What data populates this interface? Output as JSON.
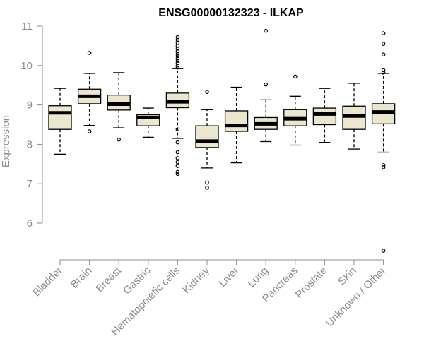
{
  "chart_data": {
    "type": "box",
    "title": "ENSG00000132323 - ILKAP",
    "xlabel": "",
    "ylabel": "Expression",
    "ylim": [
      5.2,
      11.05
    ],
    "yticks": [
      6,
      7,
      8,
      9,
      10,
      11
    ],
    "yticklabels": [
      "6",
      "7",
      "8",
      "9",
      "10",
      "11"
    ],
    "colors": {
      "box_fill": "#ede6cf",
      "box_stroke": "#000000",
      "axis": "#8c8c8c"
    },
    "categories": [
      "Bladder",
      "Brain",
      "Breast",
      "Gastric",
      "Hematopoietic cells",
      "Kidney",
      "Liver",
      "Lung",
      "Pancreas",
      "Prostate",
      "Skin",
      "Unknown / Other"
    ],
    "boxes": [
      {
        "category": "Bladder",
        "whisker_low": 7.75,
        "q1": 8.38,
        "median": 8.8,
        "q3": 8.98,
        "whisker_high": 9.42,
        "outliers": []
      },
      {
        "category": "Brain",
        "whisker_low": 8.48,
        "q1": 9.03,
        "median": 9.22,
        "q3": 9.4,
        "whisker_high": 9.8,
        "outliers": [
          10.32,
          8.33
        ]
      },
      {
        "category": "Breast",
        "whisker_low": 8.42,
        "q1": 8.87,
        "median": 9.02,
        "q3": 9.25,
        "whisker_high": 9.82,
        "outliers": [
          8.12
        ]
      },
      {
        "category": "Gastric",
        "whisker_low": 8.18,
        "q1": 8.47,
        "median": 8.68,
        "q3": 8.75,
        "whisker_high": 8.92,
        "outliers": []
      },
      {
        "category": "Hematopoietic cells",
        "whisker_low": 8.15,
        "q1": 8.93,
        "median": 9.08,
        "q3": 9.3,
        "whisker_high": 9.92,
        "outliers": [
          10.72,
          10.65,
          10.58,
          10.5,
          10.43,
          10.36,
          10.3,
          10.24,
          10.18,
          10.12,
          10.06,
          10.0,
          9.95,
          8.38,
          8.05,
          7.8,
          7.65,
          7.55,
          7.45,
          7.3,
          7.25
        ]
      },
      {
        "category": "Kidney",
        "whisker_low": 7.4,
        "q1": 7.92,
        "median": 8.08,
        "q3": 8.47,
        "whisker_high": 8.88,
        "outliers": [
          9.33,
          7.03,
          6.9
        ]
      },
      {
        "category": "Liver",
        "whisker_low": 7.53,
        "q1": 8.33,
        "median": 8.48,
        "q3": 8.85,
        "whisker_high": 9.45,
        "outliers": []
      },
      {
        "category": "Lung",
        "whisker_low": 8.07,
        "q1": 8.38,
        "median": 8.52,
        "q3": 8.68,
        "whisker_high": 9.13,
        "outliers": [
          10.88,
          9.52
        ]
      },
      {
        "category": "Pancreas",
        "whisker_low": 7.98,
        "q1": 8.47,
        "median": 8.65,
        "q3": 8.88,
        "whisker_high": 9.22,
        "outliers": [
          9.72
        ]
      },
      {
        "category": "Prostate",
        "whisker_low": 8.05,
        "q1": 8.5,
        "median": 8.77,
        "q3": 8.92,
        "whisker_high": 9.42,
        "outliers": []
      },
      {
        "category": "Skin",
        "whisker_low": 7.88,
        "q1": 8.38,
        "median": 8.72,
        "q3": 8.97,
        "whisker_high": 9.55,
        "outliers": []
      },
      {
        "category": "Unknown / Other",
        "whisker_low": 7.8,
        "q1": 8.52,
        "median": 8.82,
        "q3": 9.03,
        "whisker_high": 9.8,
        "outliers": [
          10.82,
          10.55,
          10.28,
          9.88,
          9.82,
          7.47,
          7.42,
          5.3
        ]
      }
    ]
  }
}
